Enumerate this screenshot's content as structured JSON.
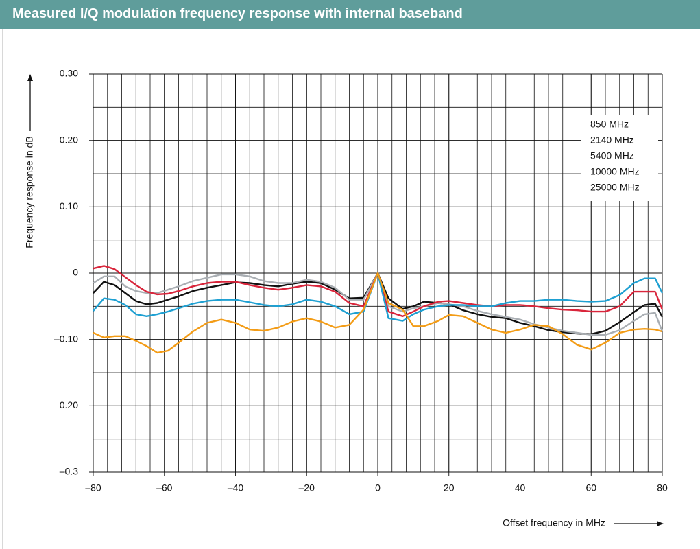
{
  "chart_data": {
    "type": "line",
    "title": "Measured I/Q modulation frequency response with internal baseband",
    "x_label": "Offset frequency in MHz",
    "y_label": "Frequency response in dB",
    "x": [
      -80,
      -77,
      -74,
      -71,
      -68,
      -65,
      -62,
      -59,
      -56,
      -52,
      -48,
      -44,
      -40,
      -36,
      -32,
      -28,
      -24,
      -20,
      -16,
      -12,
      -8,
      -4,
      0,
      3,
      7,
      10,
      13,
      17,
      20,
      24,
      28,
      32,
      36,
      40,
      44,
      48,
      52,
      56,
      60,
      64,
      68,
      72,
      75,
      78,
      80
    ],
    "series": [
      {
        "name": "850 MHz",
        "color": "#111111",
        "values": [
          -0.03,
          -0.013,
          -0.018,
          -0.03,
          -0.042,
          -0.047,
          -0.045,
          -0.04,
          -0.035,
          -0.027,
          -0.022,
          -0.018,
          -0.014,
          -0.015,
          -0.018,
          -0.02,
          -0.016,
          -0.013,
          -0.015,
          -0.025,
          -0.038,
          -0.037,
          0,
          -0.038,
          -0.054,
          -0.05,
          -0.043,
          -0.045,
          -0.047,
          -0.056,
          -0.062,
          -0.066,
          -0.068,
          -0.075,
          -0.08,
          -0.086,
          -0.089,
          -0.091,
          -0.092,
          -0.087,
          -0.074,
          -0.059,
          -0.048,
          -0.046,
          -0.066
        ]
      },
      {
        "name": "2140 MHz",
        "color": "#a9aeb3",
        "values": [
          -0.015,
          -0.005,
          -0.005,
          -0.02,
          -0.027,
          -0.03,
          -0.03,
          -0.025,
          -0.02,
          -0.012,
          -0.007,
          -0.002,
          -0.002,
          -0.005,
          -0.012,
          -0.015,
          -0.015,
          -0.01,
          -0.013,
          -0.022,
          -0.04,
          -0.04,
          0,
          -0.05,
          -0.058,
          -0.053,
          -0.05,
          -0.045,
          -0.047,
          -0.05,
          -0.057,
          -0.062,
          -0.066,
          -0.07,
          -0.077,
          -0.082,
          -0.087,
          -0.09,
          -0.093,
          -0.093,
          -0.086,
          -0.072,
          -0.062,
          -0.06,
          -0.088
        ]
      },
      {
        "name": "5400 MHz",
        "color": "#d9253b",
        "values": [
          0.007,
          0.011,
          0.006,
          -0.006,
          -0.018,
          -0.028,
          -0.032,
          -0.031,
          -0.027,
          -0.02,
          -0.015,
          -0.013,
          -0.013,
          -0.018,
          -0.022,
          -0.025,
          -0.022,
          -0.018,
          -0.02,
          -0.028,
          -0.045,
          -0.05,
          0,
          -0.058,
          -0.065,
          -0.058,
          -0.05,
          -0.043,
          -0.042,
          -0.045,
          -0.048,
          -0.05,
          -0.048,
          -0.048,
          -0.05,
          -0.053,
          -0.055,
          -0.056,
          -0.058,
          -0.058,
          -0.05,
          -0.028,
          -0.028,
          -0.028,
          -0.055
        ]
      },
      {
        "name": "10000 MHz",
        "color": "#1ea0d2",
        "values": [
          -0.057,
          -0.038,
          -0.04,
          -0.048,
          -0.062,
          -0.065,
          -0.062,
          -0.058,
          -0.053,
          -0.046,
          -0.042,
          -0.04,
          -0.04,
          -0.044,
          -0.048,
          -0.05,
          -0.047,
          -0.04,
          -0.043,
          -0.05,
          -0.062,
          -0.058,
          0,
          -0.068,
          -0.072,
          -0.062,
          -0.055,
          -0.05,
          -0.048,
          -0.048,
          -0.05,
          -0.05,
          -0.045,
          -0.042,
          -0.042,
          -0.04,
          -0.04,
          -0.042,
          -0.043,
          -0.042,
          -0.033,
          -0.015,
          -0.008,
          -0.008,
          -0.03
        ]
      },
      {
        "name": "25000 MHz",
        "color": "#f39c16",
        "values": [
          -0.09,
          -0.097,
          -0.095,
          -0.095,
          -0.102,
          -0.11,
          -0.12,
          -0.117,
          -0.105,
          -0.088,
          -0.075,
          -0.07,
          -0.075,
          -0.085,
          -0.087,
          -0.082,
          -0.073,
          -0.068,
          -0.073,
          -0.082,
          -0.078,
          -0.055,
          0,
          -0.045,
          -0.055,
          -0.08,
          -0.08,
          -0.072,
          -0.063,
          -0.065,
          -0.075,
          -0.085,
          -0.09,
          -0.085,
          -0.078,
          -0.08,
          -0.092,
          -0.108,
          -0.115,
          -0.105,
          -0.09,
          -0.085,
          -0.084,
          -0.085,
          -0.088
        ]
      }
    ],
    "xlim": [
      -80,
      80
    ],
    "ylim": [
      -0.3,
      0.3
    ],
    "xticks": [
      {
        "value": -80,
        "label": "–80"
      },
      {
        "value": -60,
        "label": "–60"
      },
      {
        "value": -40,
        "label": "–40"
      },
      {
        "value": -20,
        "label": "–20"
      },
      0,
      20,
      40,
      60,
      80
    ],
    "yticks": [
      {
        "value": -0.3,
        "label": "–0.3"
      },
      {
        "value": -0.2,
        "label": "–0.20"
      },
      {
        "value": -0.1,
        "label": "–0.10"
      },
      0,
      {
        "value": 0.1,
        "label": "0.10"
      },
      {
        "value": 0.2,
        "label": "0.20"
      },
      {
        "value": 0.3,
        "label": "0.30"
      }
    ],
    "grid": true,
    "legend": "upper right"
  }
}
